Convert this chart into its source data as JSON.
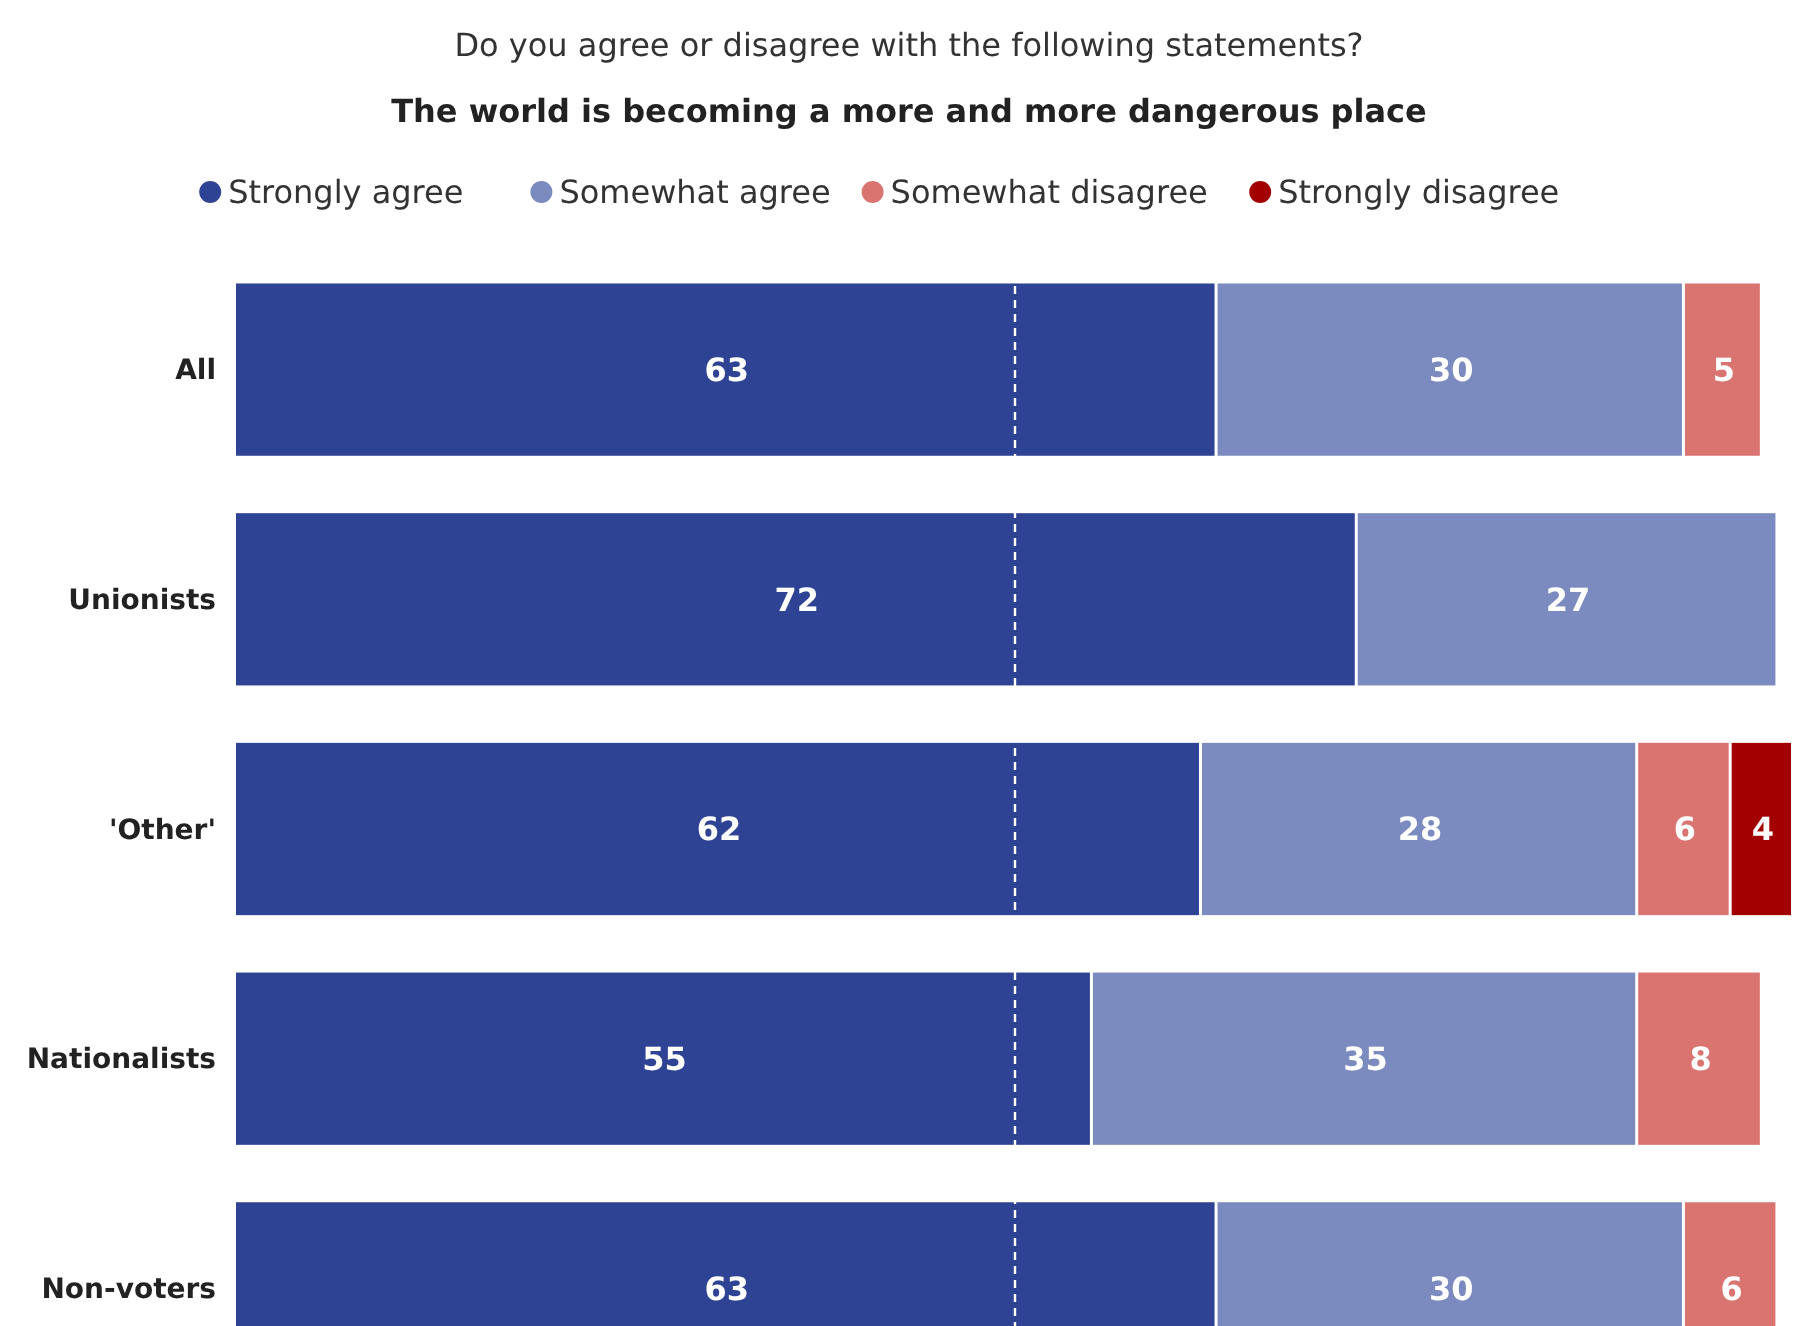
{
  "chart_data": {
    "type": "bar",
    "orientation": "horizontal",
    "stacked": true,
    "subtitle": "Do you agree or disagree with the following statements?",
    "title": "The world is becoming a more and more dangerous place",
    "categories": [
      "All",
      "Unionists",
      "'Other'",
      "Nationalists",
      "Non-voters"
    ],
    "series": [
      {
        "name": "Strongly agree",
        "color": "#2e4394",
        "values": [
          63,
          72,
          62,
          55,
          63
        ],
        "value_labels": [
          "63",
          "72",
          "62",
          "55",
          "63"
        ]
      },
      {
        "name": "Somewhat agree",
        "color": "#7b8bbf",
        "values": [
          30,
          27,
          28,
          35,
          30
        ],
        "value_labels": [
          "30",
          "27",
          "28",
          "35",
          "30"
        ]
      },
      {
        "name": "Somewhat disagree",
        "color": "#d97470",
        "values": [
          5,
          null,
          6,
          8,
          6
        ],
        "value_labels": [
          "5",
          null,
          "6",
          "8",
          "6"
        ]
      },
      {
        "name": "Strongly disagree",
        "color": "#a30000",
        "values": [
          null,
          null,
          4,
          null,
          null
        ],
        "value_labels": [
          null,
          null,
          "4",
          null,
          null
        ]
      }
    ],
    "xlim": [
      0,
      100
    ],
    "tick_labels": "y",
    "legend": "top",
    "ref_lines": [
      {
        "axis": "x",
        "value": 50,
        "color": "#ffffff",
        "line_style": "dashed"
      }
    ]
  }
}
